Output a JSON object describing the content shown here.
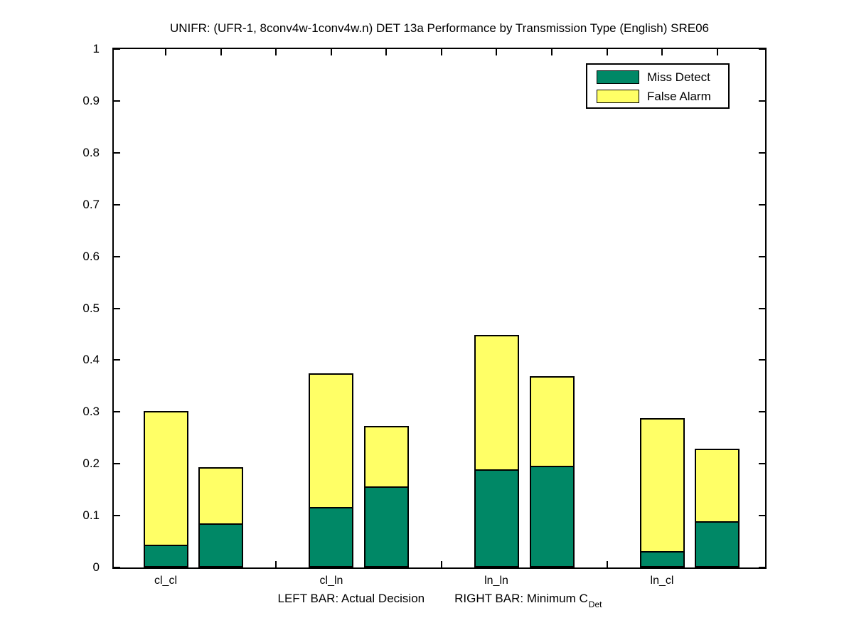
{
  "title": "UNIFR: (UFR-1, 8conv4w-1conv4w.n) DET 13a Performance by Transmission Type (English) SRE06",
  "legend": {
    "items": [
      {
        "label": "Miss Detect",
        "color": "#008866"
      },
      {
        "label": "False Alarm",
        "color": "#FFFF66"
      }
    ]
  },
  "xlabel": {
    "left": "LEFT BAR: Actual Decision",
    "right": "RIGHT BAR: Minimum C",
    "subscript": "Det"
  },
  "colors": {
    "miss_detect": "#008866",
    "false_alarm": "#FFFF66",
    "axis": "#000000",
    "background": "#ffffff"
  },
  "chart_data": {
    "type": "bar",
    "stacked": true,
    "title": "UNIFR: (UFR-1, 8conv4w-1conv4w.n) DET 13a Performance by Transmission Type (English) SRE06",
    "categories": [
      "cl_cl",
      "cl_ln",
      "ln_ln",
      "ln_cl"
    ],
    "bar_pair_meaning": [
      "LEFT BAR: Actual Decision",
      "RIGHT BAR: Minimum C_Det"
    ],
    "series": [
      {
        "name": "Miss Detect",
        "bar": "left (Actual Decision)",
        "color": "#008866",
        "values": [
          0.041,
          0.114,
          0.187,
          0.029
        ]
      },
      {
        "name": "False Alarm",
        "bar": "left (Actual Decision)",
        "color": "#FFFF66",
        "values": [
          0.261,
          0.26,
          0.262,
          0.259
        ]
      },
      {
        "name": "Miss Detect",
        "bar": "right (Minimum C_Det)",
        "color": "#008866",
        "values": [
          0.082,
          0.153,
          0.194,
          0.086
        ]
      },
      {
        "name": "False Alarm",
        "bar": "right (Minimum C_Det)",
        "color": "#FFFF66",
        "values": [
          0.111,
          0.12,
          0.175,
          0.142
        ]
      }
    ],
    "stack_totals": {
      "actual_decision": [
        0.302,
        0.374,
        0.449,
        0.288
      ],
      "minimum_cdet": [
        0.193,
        0.273,
        0.369,
        0.228
      ]
    },
    "ylim": [
      0,
      1
    ],
    "ytick_labels": [
      "0",
      "0.1",
      "0.2",
      "0.3",
      "0.4",
      "0.5",
      "0.6",
      "0.7",
      "0.8",
      "0.9",
      "1"
    ],
    "grid": false,
    "legend_position": "top-right"
  }
}
